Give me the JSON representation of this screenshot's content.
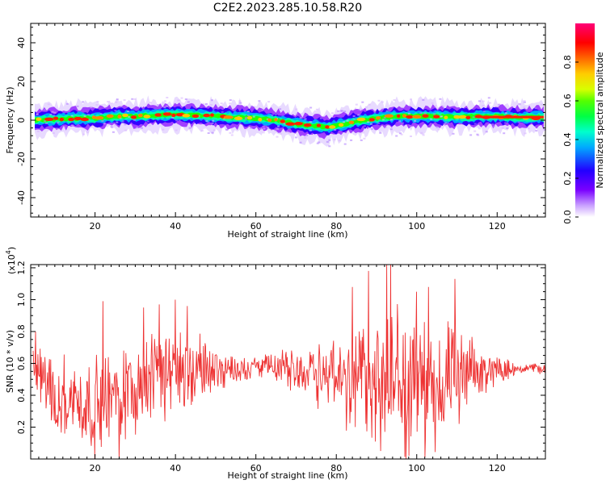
{
  "title": "C2E2.2023.285.10.58.R20",
  "chart_data": [
    {
      "type": "heatmap",
      "xlabel": "Height of straight line (km)",
      "ylabel": "Frequency (Hz)",
      "xlim": [
        4,
        132
      ],
      "ylim": [
        -50,
        50
      ],
      "xticks": [
        20,
        40,
        60,
        80,
        100,
        120
      ],
      "yticks": [
        40,
        20,
        0,
        -20,
        -40
      ],
      "ridge_frequency": [
        [
          5,
          0
        ],
        [
          10,
          0.5
        ],
        [
          15,
          1
        ],
        [
          20,
          1
        ],
        [
          25,
          2
        ],
        [
          30,
          2
        ],
        [
          35,
          2.5
        ],
        [
          40,
          3
        ],
        [
          45,
          2.5
        ],
        [
          50,
          2
        ],
        [
          55,
          1.5
        ],
        [
          60,
          1
        ],
        [
          65,
          0
        ],
        [
          70,
          -2
        ],
        [
          75,
          -3
        ],
        [
          78,
          -3.5
        ],
        [
          82,
          -2
        ],
        [
          85,
          -0.5
        ],
        [
          90,
          1
        ],
        [
          95,
          2
        ],
        [
          100,
          2
        ],
        [
          105,
          2
        ],
        [
          110,
          1.5
        ],
        [
          115,
          2
        ],
        [
          120,
          2
        ],
        [
          125,
          1.5
        ],
        [
          131,
          1.5
        ]
      ],
      "colorbar": {
        "label": "Normalized spectral amplitude",
        "ticks": [
          "0.0",
          "0.2",
          "0.4",
          "0.6",
          "0.8"
        ],
        "range": [
          0,
          1
        ]
      }
    },
    {
      "type": "line",
      "xlabel": "Height of straight line (km)",
      "ylabel": "SNR (10 * v/v)",
      "multiplier": "(x10",
      "multiplier_exp": "4",
      "multiplier_close": ")",
      "xlim": [
        4,
        132
      ],
      "ylim": [
        0,
        1.22
      ],
      "xticks": [
        20,
        40,
        60,
        80,
        100,
        120
      ],
      "yticks": [
        "0.2",
        "0.4",
        "0.6",
        "0.8",
        "1.0",
        "1.2"
      ],
      "color": "#ee3333",
      "envelope": {
        "x": [
          5,
          8,
          12,
          16,
          20,
          24,
          28,
          32,
          36,
          40,
          44,
          48,
          52,
          56,
          60,
          64,
          68,
          72,
          76,
          80,
          84,
          88,
          92,
          96,
          100,
          104,
          108,
          112,
          116,
          120,
          124,
          128,
          131
        ],
        "mean": [
          0.55,
          0.45,
          0.4,
          0.35,
          0.32,
          0.38,
          0.45,
          0.5,
          0.52,
          0.55,
          0.55,
          0.56,
          0.57,
          0.57,
          0.58,
          0.58,
          0.57,
          0.56,
          0.55,
          0.52,
          0.5,
          0.5,
          0.5,
          0.5,
          0.48,
          0.46,
          0.48,
          0.52,
          0.55,
          0.56,
          0.57,
          0.57,
          0.57
        ],
        "amplitude": [
          0.25,
          0.28,
          0.3,
          0.32,
          0.35,
          0.38,
          0.38,
          0.36,
          0.35,
          0.33,
          0.3,
          0.22,
          0.14,
          0.1,
          0.08,
          0.1,
          0.14,
          0.2,
          0.26,
          0.32,
          0.4,
          0.48,
          0.55,
          0.55,
          0.52,
          0.48,
          0.42,
          0.3,
          0.18,
          0.1,
          0.06,
          0.04,
          0.04
        ]
      },
      "peaks": [
        {
          "x": 5.2,
          "y": 0.8
        },
        {
          "x": 22,
          "y": 0.99
        },
        {
          "x": 26,
          "y": 0.0
        },
        {
          "x": 32,
          "y": 0.95
        },
        {
          "x": 36,
          "y": 0.97
        },
        {
          "x": 40,
          "y": 1.0
        },
        {
          "x": 43,
          "y": 0.96
        },
        {
          "x": 84,
          "y": 1.08
        },
        {
          "x": 88,
          "y": 1.18
        },
        {
          "x": 91,
          "y": 0.05
        },
        {
          "x": 92.5,
          "y": 1.22
        },
        {
          "x": 93.5,
          "y": 1.22
        },
        {
          "x": 98,
          "y": 0.02
        },
        {
          "x": 100,
          "y": 1.05
        },
        {
          "x": 102,
          "y": 0.01
        },
        {
          "x": 103,
          "y": 1.08
        },
        {
          "x": 109.5,
          "y": 1.13
        },
        {
          "x": 110.5,
          "y": 0.22
        }
      ]
    }
  ]
}
